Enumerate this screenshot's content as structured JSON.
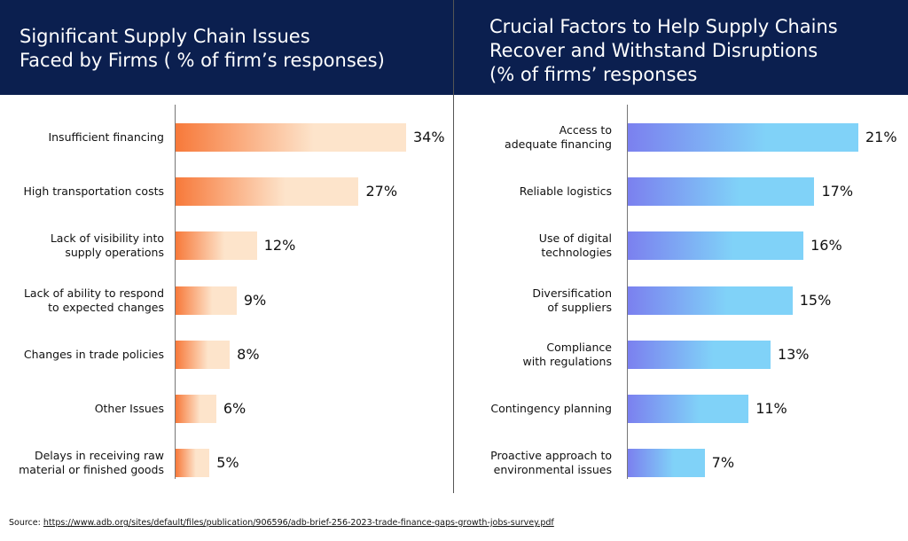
{
  "chart_data": [
    {
      "type": "bar",
      "orientation": "horizontal",
      "title": "Significant Supply Chain Issues\nFaced by Firms ( % of firm’s responses)",
      "categories": [
        "Insufficient financing",
        "High transportation costs",
        "Lack of visibility into\nsupply operations",
        "Lack of ability to respond\nto expected changes",
        "Changes in trade policies",
        "Other Issues",
        "Delays in receiving raw\nmaterial or finished goods"
      ],
      "values": [
        34,
        27,
        12,
        9,
        8,
        6,
        5
      ],
      "value_labels": [
        "34%",
        "27%",
        "12%",
        "9%",
        "8%",
        "6%",
        "5%"
      ],
      "colors": [
        "#f7793a",
        "#fde4cb"
      ]
    },
    {
      "type": "bar",
      "orientation": "horizontal",
      "title": "Crucial Factors to Help Supply Chains\nRecover and Withstand Disruptions\n(% of firms’ responses",
      "categories": [
        "Access to\nadequate financing",
        "Reliable logistics",
        "Use of digital\ntechnologies",
        "Diversification\nof suppliers",
        "Compliance\nwith regulations",
        "Contingency planning",
        "Proactive approach to\nenvironmental issues"
      ],
      "values": [
        21,
        17,
        16,
        15,
        13,
        11,
        7
      ],
      "value_labels": [
        "21%",
        "17%",
        "16%",
        "15%",
        "13%",
        "11%",
        "7%"
      ],
      "colors": [
        "#7b80ef",
        "#80d2f8"
      ]
    }
  ],
  "source": {
    "label": "Source:",
    "url": "https://www.adb.org/sites/default/files/publication/906596/adb-brief-256-2023-trade-finance-gaps-growth-jobs-survey.pdf"
  }
}
